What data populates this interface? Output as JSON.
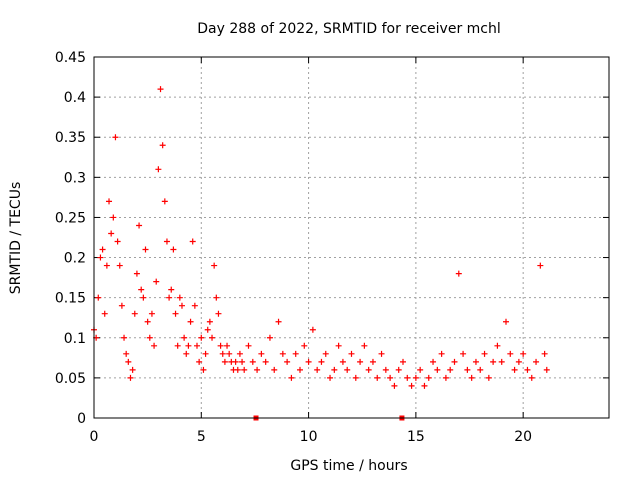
{
  "chart_data": {
    "type": "scatter",
    "title": "Day 288 of 2022, SRMTID for receiver mchl",
    "xlabel": "GPS time / hours",
    "ylabel": "SRMTID / TECUs",
    "xlim": [
      0,
      24
    ],
    "ylim": [
      0,
      0.45
    ],
    "xticks": [
      0,
      5,
      10,
      15,
      20
    ],
    "xtick_labels": [
      "0",
      "5",
      "10",
      "15",
      "20"
    ],
    "yticks": [
      0,
      0.05,
      0.1,
      0.15,
      0.2,
      0.25,
      0.3,
      0.35,
      0.4,
      0.45
    ],
    "ytick_labels": [
      "0",
      "0.05",
      "0.1",
      "0.15",
      "0.2",
      "0.25",
      "0.3",
      "0.35",
      "0.4",
      "0.45"
    ],
    "grid": true,
    "marker": "plus",
    "color": "#ff0000",
    "series": [
      {
        "name": "SRMTID",
        "x": [
          0.0,
          0.1,
          0.2,
          0.3,
          0.4,
          0.5,
          0.6,
          0.7,
          0.8,
          0.9,
          1.0,
          1.1,
          1.2,
          1.3,
          1.4,
          1.5,
          1.6,
          1.7,
          1.8,
          1.9,
          2.0,
          2.1,
          2.2,
          2.3,
          2.4,
          2.5,
          2.6,
          2.7,
          2.8,
          2.9,
          3.0,
          3.1,
          3.2,
          3.3,
          3.4,
          3.5,
          3.6,
          3.7,
          3.8,
          3.9,
          4.0,
          4.1,
          4.2,
          4.3,
          4.4,
          4.5,
          4.6,
          4.7,
          4.8,
          4.9,
          5.0,
          5.1,
          5.2,
          5.3,
          5.4,
          5.5,
          5.6,
          5.7,
          5.8,
          5.9,
          6.0,
          6.1,
          6.2,
          6.3,
          6.4,
          6.5,
          6.6,
          6.7,
          6.8,
          6.9,
          7.0,
          7.2,
          7.4,
          7.6,
          7.8,
          8.0,
          8.2,
          8.4,
          8.6,
          8.8,
          9.0,
          9.2,
          9.4,
          9.6,
          9.8,
          10.0,
          10.2,
          10.4,
          10.6,
          10.8,
          11.0,
          11.2,
          11.4,
          11.6,
          11.8,
          12.0,
          12.2,
          12.4,
          12.6,
          12.8,
          13.0,
          13.2,
          13.4,
          13.6,
          13.8,
          14.0,
          14.2,
          14.4,
          14.6,
          14.8,
          15.0,
          15.2,
          15.4,
          15.6,
          15.8,
          16.0,
          16.2,
          16.4,
          16.6,
          16.8,
          17.0,
          17.2,
          17.4,
          17.6,
          17.8,
          18.0,
          18.2,
          18.4,
          18.6,
          18.8,
          19.0,
          19.2,
          19.4,
          19.6,
          19.8,
          20.0,
          20.2,
          20.4,
          20.6,
          20.8,
          21.0,
          21.1
        ],
        "y": [
          0.11,
          0.1,
          0.15,
          0.2,
          0.21,
          0.13,
          0.19,
          0.27,
          0.23,
          0.25,
          0.35,
          0.22,
          0.19,
          0.14,
          0.1,
          0.08,
          0.07,
          0.05,
          0.06,
          0.13,
          0.18,
          0.24,
          0.16,
          0.15,
          0.21,
          0.12,
          0.1,
          0.13,
          0.09,
          0.17,
          0.31,
          0.41,
          0.34,
          0.27,
          0.22,
          0.15,
          0.16,
          0.21,
          0.13,
          0.09,
          0.15,
          0.14,
          0.1,
          0.08,
          0.09,
          0.12,
          0.22,
          0.14,
          0.09,
          0.07,
          0.1,
          0.06,
          0.08,
          0.11,
          0.12,
          0.1,
          0.19,
          0.15,
          0.13,
          0.09,
          0.08,
          0.07,
          0.09,
          0.08,
          0.07,
          0.06,
          0.07,
          0.06,
          0.08,
          0.07,
          0.06,
          0.09,
          0.07,
          0.06,
          0.08,
          0.07,
          0.1,
          0.06,
          0.12,
          0.08,
          0.07,
          0.05,
          0.08,
          0.06,
          0.09,
          0.07,
          0.11,
          0.06,
          0.07,
          0.08,
          0.05,
          0.06,
          0.09,
          0.07,
          0.06,
          0.08,
          0.05,
          0.07,
          0.09,
          0.06,
          0.07,
          0.05,
          0.08,
          0.06,
          0.05,
          0.04,
          0.06,
          0.07,
          0.05,
          0.04,
          0.05,
          0.06,
          0.04,
          0.05,
          0.07,
          0.06,
          0.08,
          0.05,
          0.06,
          0.07,
          0.18,
          0.08,
          0.06,
          0.05,
          0.07,
          0.06,
          0.08,
          0.05,
          0.07,
          0.09,
          0.07,
          0.12,
          0.08,
          0.06,
          0.07,
          0.08,
          0.06,
          0.05,
          0.07,
          0.19,
          0.08,
          0.06
        ]
      }
    ],
    "gap_markers_x": [
      7.55,
      14.35
    ]
  }
}
